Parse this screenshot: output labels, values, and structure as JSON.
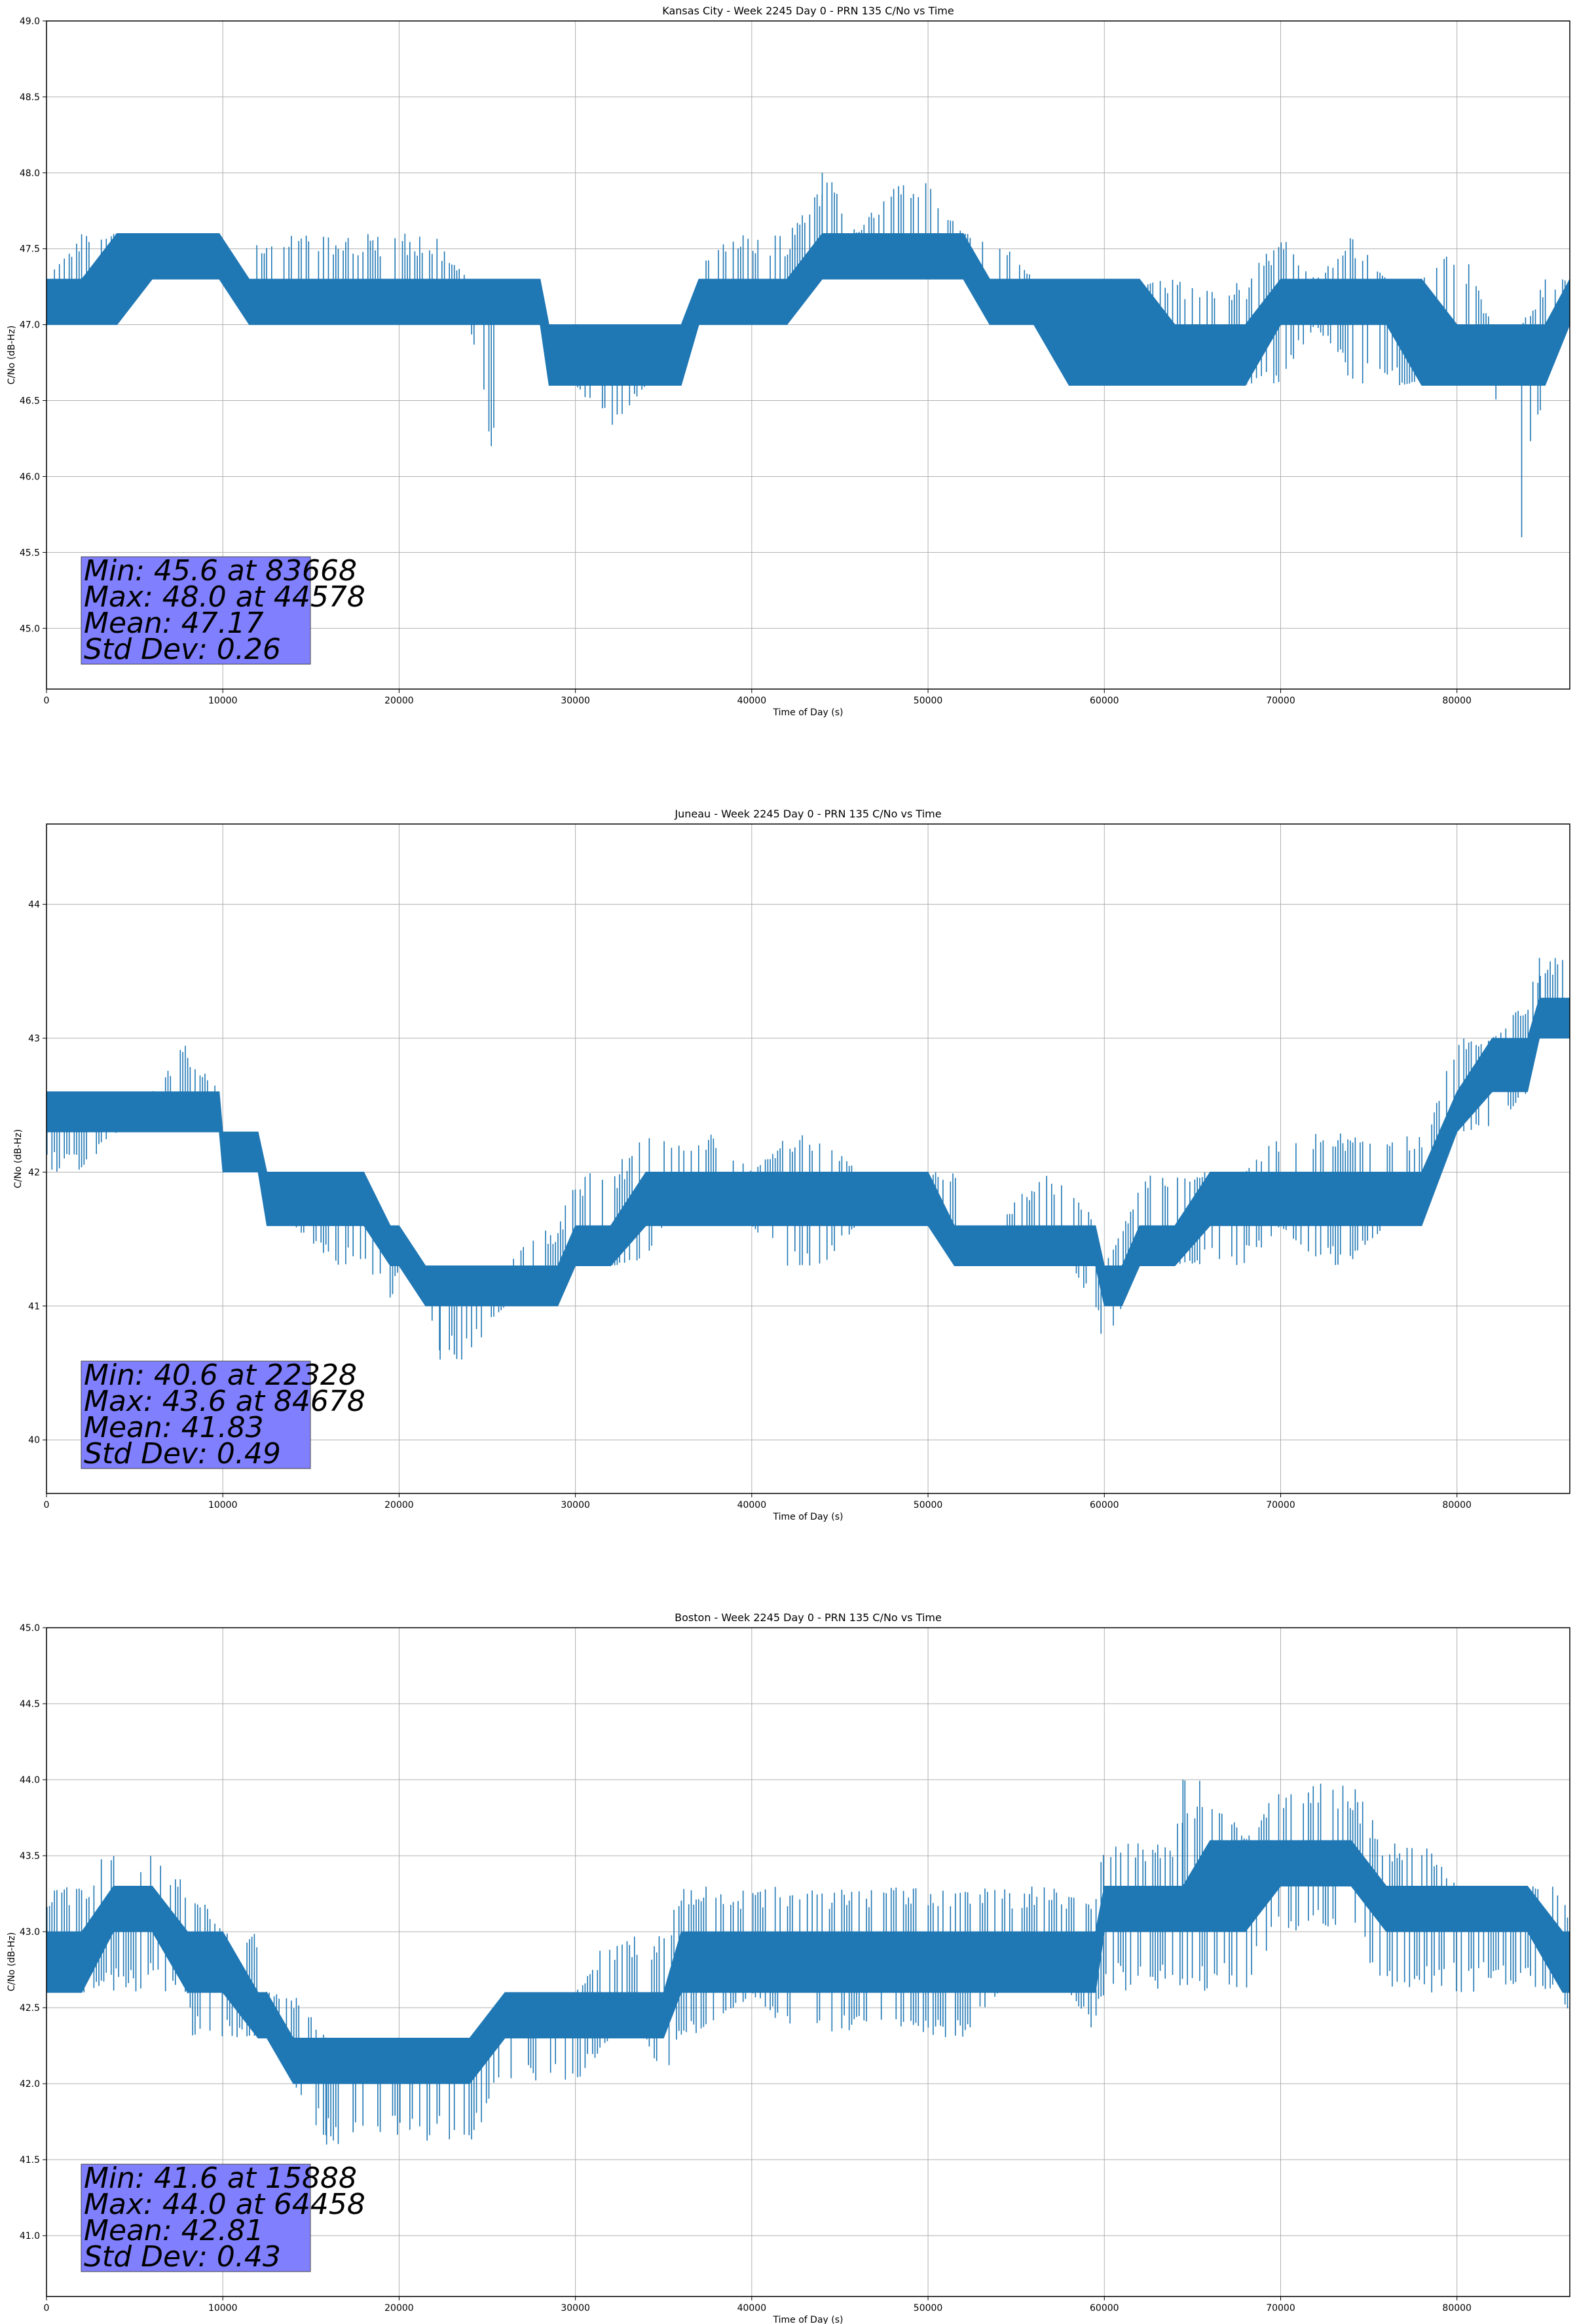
{
  "chart_data": [
    {
      "type": "line",
      "title": "Kansas City - Week 2245 Day 0 - PRN 135 C/No vs Time",
      "xlabel": "Time of Day (s)",
      "ylabel": "C/No (dB-Hz)",
      "xlim": [
        0,
        86400
      ],
      "ylim": [
        44.6,
        49.0
      ],
      "xticks": [
        "0",
        "10000",
        "20000",
        "30000",
        "40000",
        "50000",
        "60000",
        "70000",
        "80000"
      ],
      "yticks": [
        "45.0",
        "45.5",
        "46.0",
        "46.5",
        "47.0",
        "47.5",
        "48.0",
        "48.5",
        "49.0"
      ],
      "grid": true,
      "color": "#1f77b4",
      "stats_box": {
        "color": "#8080ff",
        "lines": [
          "Min: 45.6 at 83668",
          "Max: 48.0 at 44578",
          "Mean: 47.17",
          "Std Dev: 0.26"
        ]
      },
      "series": [
        {
          "x": [
            0,
            2000,
            4000,
            6000,
            8000,
            9800,
            11500,
            12000,
            14000,
            16000,
            18000,
            20000,
            22000,
            24000,
            25400,
            26000,
            28000,
            28500,
            30000,
            32000,
            34000,
            36000,
            37000,
            38000,
            40000,
            42000,
            44000,
            44578,
            46000,
            48000,
            50000,
            52000,
            53500,
            54000,
            56000,
            58000,
            60000,
            62000,
            64000,
            66000,
            68000,
            70000,
            72000,
            74000,
            76000,
            78000,
            80000,
            82000,
            83668,
            85000,
            86400
          ],
          "low": [
            47.0,
            47.0,
            47.0,
            47.3,
            47.3,
            47.3,
            47.0,
            47.0,
            47.0,
            47.0,
            47.0,
            47.0,
            47.0,
            47.0,
            46.0,
            47.0,
            47.0,
            46.6,
            46.6,
            46.3,
            46.6,
            46.6,
            47.0,
            47.0,
            47.0,
            47.0,
            47.3,
            47.3,
            47.3,
            47.3,
            47.3,
            47.3,
            47.0,
            47.0,
            47.0,
            46.6,
            46.6,
            46.6,
            46.6,
            46.6,
            46.6,
            46.6,
            47.0,
            46.6,
            46.6,
            46.6,
            46.6,
            46.6,
            45.6,
            46.6,
            47.0
          ],
          "high": [
            47.3,
            47.6,
            47.6,
            47.6,
            47.6,
            47.6,
            47.3,
            47.6,
            47.6,
            47.6,
            47.6,
            47.6,
            47.6,
            47.3,
            47.3,
            47.3,
            47.3,
            47.0,
            47.0,
            47.0,
            47.0,
            47.0,
            47.3,
            47.6,
            47.6,
            47.6,
            48.0,
            48.0,
            47.6,
            48.0,
            48.0,
            47.6,
            47.6,
            47.6,
            47.3,
            47.3,
            47.3,
            47.3,
            47.3,
            47.3,
            47.3,
            47.6,
            47.3,
            47.6,
            47.3,
            47.3,
            47.6,
            47.0,
            47.0,
            47.3,
            47.3
          ],
          "band_low": [
            47.0,
            47.0,
            47.0,
            47.3,
            47.3,
            47.3,
            47.0,
            47.0,
            47.0,
            47.0,
            47.0,
            47.0,
            47.0,
            47.0,
            47.0,
            47.0,
            47.0,
            46.6,
            46.6,
            46.6,
            46.6,
            46.6,
            47.0,
            47.0,
            47.0,
            47.0,
            47.3,
            47.3,
            47.3,
            47.3,
            47.3,
            47.3,
            47.0,
            47.0,
            47.0,
            46.6,
            46.6,
            46.6,
            46.6,
            46.6,
            46.6,
            47.0,
            47.0,
            47.0,
            47.0,
            46.6,
            46.6,
            46.6,
            46.6,
            46.6,
            47.0
          ],
          "band_high": [
            47.3,
            47.3,
            47.6,
            47.6,
            47.6,
            47.6,
            47.3,
            47.3,
            47.3,
            47.3,
            47.3,
            47.3,
            47.3,
            47.3,
            47.3,
            47.3,
            47.3,
            47.0,
            47.0,
            47.0,
            47.0,
            47.0,
            47.3,
            47.3,
            47.3,
            47.3,
            47.6,
            47.6,
            47.6,
            47.6,
            47.6,
            47.6,
            47.3,
            47.3,
            47.3,
            47.3,
            47.3,
            47.3,
            47.0,
            47.0,
            47.0,
            47.3,
            47.3,
            47.3,
            47.3,
            47.3,
            47.0,
            47.0,
            47.0,
            47.0,
            47.3
          ]
        }
      ]
    },
    {
      "type": "line",
      "title": "Juneau - Week 2245 Day 0 - PRN 135 C/No vs Time",
      "xlabel": "Time of Day (s)",
      "ylabel": "C/No (dB-Hz)",
      "xlim": [
        0,
        86400
      ],
      "ylim": [
        39.6,
        44.6
      ],
      "xticks": [
        "0",
        "10000",
        "20000",
        "30000",
        "40000",
        "50000",
        "60000",
        "70000",
        "80000"
      ],
      "yticks": [
        "40",
        "41",
        "42",
        "43",
        "44"
      ],
      "grid": true,
      "color": "#1f77b4",
      "stats_box": {
        "color": "#8080ff",
        "lines": [
          "Min: 40.6 at 22328",
          "Max: 43.6 at 84678",
          "Mean: 41.83",
          "Std Dev: 0.49"
        ]
      },
      "series": [
        {
          "x": [
            0,
            2000,
            4000,
            6000,
            8000,
            9800,
            10000,
            12000,
            12500,
            14000,
            16000,
            18000,
            19500,
            20000,
            21500,
            22328,
            24000,
            26000,
            28000,
            29000,
            30000,
            32000,
            34000,
            35000,
            36000,
            38000,
            40000,
            42000,
            44000,
            46000,
            48000,
            50000,
            51500,
            52000,
            54000,
            56000,
            58000,
            59500,
            60000,
            61000,
            62000,
            64000,
            66000,
            68000,
            70000,
            72000,
            74000,
            76000,
            78000,
            80000,
            82000,
            84000,
            84678,
            86400
          ],
          "low": [
            42.0,
            42.0,
            42.3,
            42.3,
            42.3,
            42.3,
            42.0,
            42.0,
            41.6,
            41.6,
            41.3,
            41.3,
            41.0,
            41.3,
            41.0,
            40.6,
            40.6,
            41.0,
            41.0,
            41.0,
            41.3,
            41.3,
            41.3,
            41.6,
            41.6,
            41.6,
            41.6,
            41.3,
            41.3,
            41.6,
            41.6,
            41.6,
            41.3,
            41.3,
            41.3,
            41.3,
            41.3,
            41.0,
            40.6,
            41.0,
            41.3,
            41.3,
            41.3,
            41.3,
            41.6,
            41.3,
            41.3,
            41.6,
            41.6,
            42.3,
            42.3,
            42.6,
            43.0,
            43.0
          ],
          "high": [
            42.6,
            42.6,
            42.6,
            42.6,
            43.0,
            42.6,
            42.3,
            42.3,
            42.0,
            42.0,
            42.0,
            42.0,
            41.6,
            41.6,
            41.3,
            41.3,
            41.3,
            41.3,
            41.6,
            41.6,
            42.0,
            42.0,
            42.3,
            42.3,
            42.3,
            42.3,
            42.0,
            42.3,
            42.3,
            42.0,
            42.0,
            42.0,
            42.0,
            41.6,
            41.6,
            42.0,
            42.0,
            41.6,
            41.3,
            41.6,
            42.0,
            42.0,
            42.0,
            42.0,
            42.3,
            42.3,
            42.3,
            42.3,
            42.3,
            43.0,
            43.0,
            43.3,
            43.6,
            43.6
          ],
          "band_low": [
            42.3,
            42.3,
            42.3,
            42.3,
            42.3,
            42.3,
            42.0,
            42.0,
            41.6,
            41.6,
            41.6,
            41.6,
            41.3,
            41.3,
            41.0,
            41.0,
            41.0,
            41.0,
            41.0,
            41.0,
            41.3,
            41.3,
            41.6,
            41.6,
            41.6,
            41.6,
            41.6,
            41.6,
            41.6,
            41.6,
            41.6,
            41.6,
            41.3,
            41.3,
            41.3,
            41.3,
            41.3,
            41.3,
            41.0,
            41.0,
            41.3,
            41.3,
            41.6,
            41.6,
            41.6,
            41.6,
            41.6,
            41.6,
            41.6,
            42.3,
            42.6,
            42.6,
            43.0,
            43.0
          ],
          "band_high": [
            42.6,
            42.6,
            42.6,
            42.6,
            42.6,
            42.6,
            42.3,
            42.3,
            42.0,
            42.0,
            42.0,
            42.0,
            41.6,
            41.6,
            41.3,
            41.3,
            41.3,
            41.3,
            41.3,
            41.3,
            41.6,
            41.6,
            42.0,
            42.0,
            42.0,
            42.0,
            42.0,
            42.0,
            42.0,
            42.0,
            42.0,
            42.0,
            41.6,
            41.6,
            41.6,
            41.6,
            41.6,
            41.6,
            41.3,
            41.3,
            41.6,
            41.6,
            42.0,
            42.0,
            42.0,
            42.0,
            42.0,
            42.0,
            42.0,
            42.6,
            43.0,
            43.0,
            43.3,
            43.3
          ]
        }
      ]
    },
    {
      "type": "line",
      "title": "Boston - Week 2245 Day 0 - PRN 135 C/No vs Time",
      "xlabel": "Time of Day (s)",
      "ylabel": "C/No (dB-Hz)",
      "xlim": [
        0,
        86400
      ],
      "ylim": [
        40.6,
        45.0
      ],
      "xticks": [
        "0",
        "10000",
        "20000",
        "30000",
        "40000",
        "50000",
        "60000",
        "70000",
        "80000"
      ],
      "yticks": [
        "41.0",
        "41.5",
        "42.0",
        "42.5",
        "43.0",
        "43.5",
        "44.0",
        "44.5",
        "45.0"
      ],
      "grid": true,
      "color": "#1f77b4",
      "stats_box": {
        "color": "#8080ff",
        "lines": [
          "Min: 41.6 at 15888",
          "Max: 44.0 at 64458",
          "Mean: 42.81",
          "Std Dev: 0.43"
        ]
      },
      "series": [
        {
          "x": [
            0,
            2000,
            3800,
            4000,
            5000,
            6000,
            8000,
            8300,
            10000,
            12000,
            12500,
            14000,
            15888,
            16000,
            18000,
            20000,
            22000,
            24000,
            26000,
            28000,
            30000,
            32000,
            34000,
            35000,
            36000,
            38000,
            40000,
            42000,
            44000,
            46000,
            48000,
            50000,
            52000,
            54000,
            56000,
            58000,
            59500,
            60000,
            62000,
            64000,
            64458,
            66000,
            68000,
            70000,
            72000,
            74000,
            76000,
            78000,
            80000,
            82000,
            84000,
            86000,
            86400
          ],
          "low": [
            42.6,
            42.6,
            42.6,
            42.6,
            42.6,
            42.6,
            42.6,
            42.3,
            42.3,
            42.3,
            42.3,
            42.0,
            41.6,
            41.6,
            41.6,
            41.6,
            41.6,
            41.6,
            42.0,
            42.0,
            42.0,
            42.3,
            42.3,
            42.0,
            42.3,
            42.3,
            42.6,
            42.3,
            42.3,
            42.3,
            42.3,
            42.3,
            42.3,
            42.6,
            42.6,
            42.6,
            42.3,
            42.6,
            42.6,
            42.6,
            42.6,
            42.6,
            42.6,
            43.0,
            43.0,
            43.0,
            42.6,
            42.6,
            42.6,
            42.6,
            42.6,
            42.6,
            42.3
          ],
          "high": [
            43.3,
            43.3,
            43.6,
            43.3,
            43.3,
            43.6,
            43.3,
            43.3,
            43.0,
            43.0,
            42.6,
            42.6,
            42.3,
            42.3,
            42.3,
            42.3,
            42.3,
            42.3,
            42.6,
            42.6,
            42.6,
            43.0,
            43.0,
            43.0,
            43.3,
            43.3,
            43.3,
            43.3,
            43.3,
            43.3,
            43.3,
            43.3,
            43.3,
            43.3,
            43.3,
            43.3,
            43.3,
            43.6,
            43.6,
            43.6,
            44.0,
            44.0,
            43.6,
            44.0,
            44.0,
            44.0,
            43.6,
            43.6,
            43.3,
            43.3,
            43.3,
            43.3,
            43.0
          ],
          "band_low": [
            42.6,
            42.6,
            43.0,
            43.0,
            43.0,
            43.0,
            42.6,
            42.6,
            42.6,
            42.3,
            42.3,
            42.0,
            42.0,
            42.0,
            42.0,
            42.0,
            42.0,
            42.0,
            42.3,
            42.3,
            42.3,
            42.3,
            42.3,
            42.3,
            42.6,
            42.6,
            42.6,
            42.6,
            42.6,
            42.6,
            42.6,
            42.6,
            42.6,
            42.6,
            42.6,
            42.6,
            42.6,
            43.0,
            43.0,
            43.0,
            43.0,
            43.0,
            43.0,
            43.3,
            43.3,
            43.3,
            43.0,
            43.0,
            43.0,
            43.0,
            43.0,
            42.6,
            42.6
          ],
          "band_high": [
            43.0,
            43.0,
            43.3,
            43.3,
            43.3,
            43.3,
            43.0,
            43.0,
            43.0,
            42.6,
            42.6,
            42.3,
            42.3,
            42.3,
            42.3,
            42.3,
            42.3,
            42.3,
            42.6,
            42.6,
            42.6,
            42.6,
            42.6,
            42.6,
            43.0,
            43.0,
            43.0,
            43.0,
            43.0,
            43.0,
            43.0,
            43.0,
            43.0,
            43.0,
            43.0,
            43.0,
            43.0,
            43.3,
            43.3,
            43.3,
            43.3,
            43.6,
            43.6,
            43.6,
            43.6,
            43.6,
            43.3,
            43.3,
            43.3,
            43.3,
            43.3,
            43.0,
            43.0
          ]
        }
      ]
    }
  ]
}
